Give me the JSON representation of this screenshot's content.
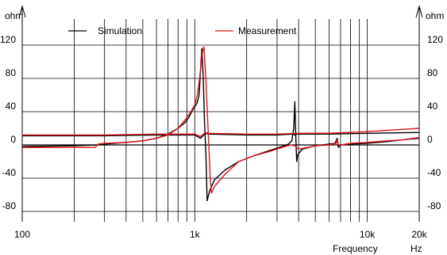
{
  "chart_data": {
    "type": "line",
    "x_scale": "log",
    "xlim": [
      100,
      20000
    ],
    "ylim": [
      -80,
      140
    ],
    "y_unit_left": "ohm",
    "y_unit_right": "ohm",
    "x_unit_label": "Frequency",
    "x_unit": "Hz",
    "x_ticks": [
      {
        "value": 100,
        "label": "100"
      },
      {
        "value": 1000,
        "label": "1k"
      },
      {
        "value": 10000,
        "label": "10k"
      },
      {
        "value": 20000,
        "label": "20k"
      }
    ],
    "y_ticks": [
      {
        "value": 120,
        "label": "120"
      },
      {
        "value": 80,
        "label": "80"
      },
      {
        "value": 40,
        "label": "40"
      },
      {
        "value": 0,
        "label": "0"
      },
      {
        "value": -40,
        "label": "-40"
      },
      {
        "value": -80,
        "label": "-80"
      }
    ],
    "grid": true,
    "legend_position": "top",
    "colors": {
      "simulation": "#000000",
      "measurement": "#e0141e",
      "grid": "#000000"
    },
    "series": [
      {
        "name": "Simulation",
        "color": "#000000",
        "points": [
          [
            100,
            -2
          ],
          [
            200,
            -1
          ],
          [
            270,
            0
          ],
          [
            300,
            1
          ],
          [
            400,
            3
          ],
          [
            500,
            5
          ],
          [
            600,
            8
          ],
          [
            700,
            13
          ],
          [
            800,
            20
          ],
          [
            880,
            27
          ],
          [
            930,
            34
          ],
          [
            960,
            40
          ],
          [
            1000,
            46
          ],
          [
            1030,
            50
          ],
          [
            1060,
            60
          ],
          [
            1080,
            90
          ],
          [
            1100,
            116
          ],
          [
            1120,
            80
          ],
          [
            1140,
            25
          ],
          [
            1160,
            -10
          ],
          [
            1180,
            -67
          ],
          [
            1220,
            -55
          ],
          [
            1300,
            -42
          ],
          [
            1500,
            -30
          ],
          [
            1800,
            -20
          ],
          [
            2200,
            -13
          ],
          [
            2700,
            -7
          ],
          [
            3200,
            -2
          ],
          [
            3500,
            1
          ],
          [
            3650,
            5
          ],
          [
            3750,
            20
          ],
          [
            3800,
            52
          ],
          [
            3850,
            12
          ],
          [
            3900,
            -20
          ],
          [
            3950,
            -12
          ],
          [
            4200,
            -5
          ],
          [
            5000,
            -1
          ],
          [
            6000,
            1
          ],
          [
            6500,
            2
          ],
          [
            6700,
            8
          ],
          [
            6800,
            -3
          ],
          [
            7000,
            0
          ],
          [
            8000,
            1
          ],
          [
            10000,
            2
          ],
          [
            13000,
            4
          ],
          [
            16000,
            6
          ],
          [
            20000,
            8
          ]
        ],
        "mirror": [
          [
            100,
            11
          ],
          [
            300,
            11
          ],
          [
            600,
            12
          ],
          [
            900,
            12
          ],
          [
            1000,
            12
          ],
          [
            1080,
            8
          ],
          [
            1150,
            14
          ],
          [
            1200,
            13
          ],
          [
            2000,
            12
          ],
          [
            3000,
            12
          ],
          [
            3700,
            13
          ],
          [
            3800,
            12
          ],
          [
            3900,
            13
          ],
          [
            6000,
            13
          ],
          [
            10000,
            14
          ],
          [
            20000,
            15
          ]
        ]
      },
      {
        "name": "Measurement",
        "color": "#e0141e",
        "points": [
          [
            100,
            -3
          ],
          [
            200,
            -3
          ],
          [
            265,
            -3
          ],
          [
            275,
            1
          ],
          [
            300,
            2
          ],
          [
            400,
            3
          ],
          [
            500,
            5
          ],
          [
            600,
            8
          ],
          [
            700,
            12
          ],
          [
            800,
            20
          ],
          [
            880,
            30
          ],
          [
            950,
            40
          ],
          [
            1000,
            48
          ],
          [
            1040,
            62
          ],
          [
            1080,
            90
          ],
          [
            1110,
            112
          ],
          [
            1130,
            118
          ],
          [
            1160,
            80
          ],
          [
            1200,
            10
          ],
          [
            1230,
            -40
          ],
          [
            1250,
            -58
          ],
          [
            1300,
            -50
          ],
          [
            1500,
            -35
          ],
          [
            1800,
            -20
          ],
          [
            2200,
            -13
          ],
          [
            2700,
            -8
          ],
          [
            3200,
            -3
          ],
          [
            3600,
            0
          ],
          [
            3800,
            -1
          ],
          [
            4000,
            -5
          ],
          [
            4500,
            -3
          ],
          [
            5000,
            -1
          ],
          [
            6000,
            0
          ],
          [
            6600,
            2
          ],
          [
            6700,
            6
          ],
          [
            6800,
            0
          ],
          [
            7000,
            0
          ],
          [
            8000,
            2
          ],
          [
            10000,
            3
          ],
          [
            13000,
            5
          ],
          [
            16000,
            6
          ],
          [
            20000,
            9
          ]
        ],
        "mirror": [
          [
            100,
            12
          ],
          [
            300,
            12
          ],
          [
            600,
            13
          ],
          [
            900,
            13
          ],
          [
            1000,
            13
          ],
          [
            1080,
            10
          ],
          [
            1150,
            15
          ],
          [
            1200,
            14
          ],
          [
            2000,
            13
          ],
          [
            3000,
            13
          ],
          [
            4000,
            14
          ],
          [
            6000,
            14
          ],
          [
            10000,
            16
          ],
          [
            20000,
            20
          ]
        ]
      }
    ]
  }
}
